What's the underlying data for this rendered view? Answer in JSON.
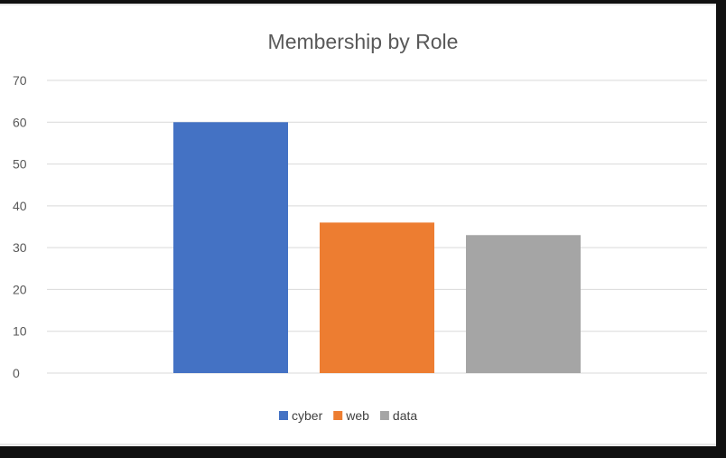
{
  "chart_data": {
    "type": "bar",
    "title": "Membership by Role",
    "xlabel": "",
    "ylabel": "",
    "series": [
      {
        "name": "cyber",
        "values": [
          60
        ],
        "color": "#4472C4"
      },
      {
        "name": "web",
        "values": [
          36
        ],
        "color": "#ED7D31"
      },
      {
        "name": "data",
        "values": [
          33
        ],
        "color": "#A5A5A5"
      }
    ],
    "ylim": [
      0,
      70
    ],
    "yticks": [
      0,
      10,
      20,
      30,
      40,
      50,
      60,
      70
    ],
    "grid": true,
    "legend_position": "bottom"
  }
}
